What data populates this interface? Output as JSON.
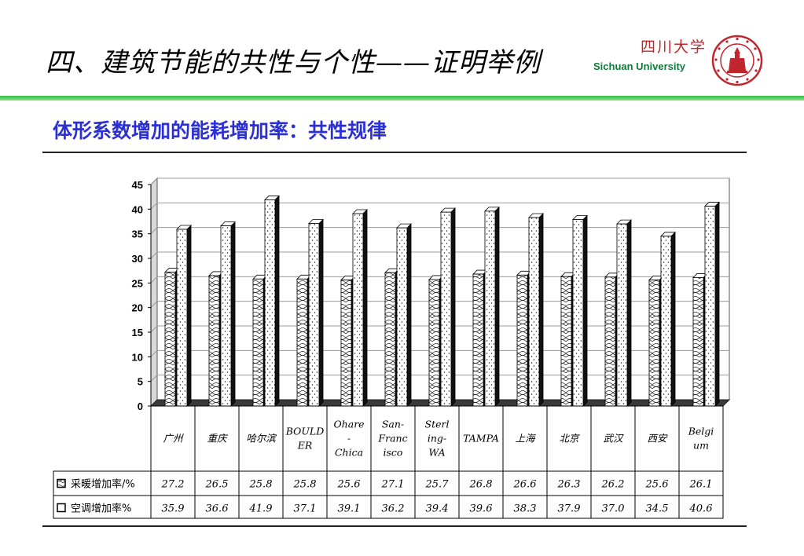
{
  "header": {
    "title": "四、建筑节能的共性与个性——证明举例",
    "logo_cn": "四川大学",
    "logo_en": "Sichuan University"
  },
  "slide": {
    "subtitle": "体形系数增加的能耗增加率：共性规律"
  },
  "colors": {
    "accent_green": "#2fc04a",
    "subtitle_blue": "#2b2fd6",
    "logo_red": "#c0262d"
  },
  "chart_data": {
    "type": "bar",
    "style": "3d clustered columns with data table",
    "grid": true,
    "ylim": [
      0,
      45
    ],
    "yticks": [
      0,
      5,
      10,
      15,
      20,
      25,
      30,
      35,
      40,
      45
    ],
    "categories": [
      "广州",
      "重庆",
      "哈尔滨",
      "BOULDER",
      "Ohare-Chica",
      "San-Francisco",
      "Sterling-WA",
      "TAMPA",
      "上海",
      "北京",
      "武汉",
      "西安",
      "Belgium"
    ],
    "category_lines": [
      [
        "广州"
      ],
      [
        "重庆"
      ],
      [
        "哈尔滨"
      ],
      [
        "BOULD",
        "ER"
      ],
      [
        "Ohare",
        "-",
        "Chica"
      ],
      [
        "San-",
        "Franc",
        "isco"
      ],
      [
        "Sterl",
        "ing-",
        "WA"
      ],
      [
        "TAMPA"
      ],
      [
        "上海"
      ],
      [
        "北京"
      ],
      [
        "武汉"
      ],
      [
        "西安"
      ],
      [
        "Belgi",
        "um"
      ]
    ],
    "series": [
      {
        "name": "采暖增加率/%",
        "pattern": "scale",
        "values": [
          27.2,
          26.5,
          25.8,
          25.8,
          25.6,
          27.1,
          25.7,
          26.8,
          26.6,
          26.3,
          26.2,
          25.6,
          26.1
        ],
        "labels": [
          "27.2",
          "26.5",
          "25.8",
          "25.8",
          "25.6",
          "27.1",
          "25.7",
          "26.8",
          "26.6",
          "26.3",
          "26.2",
          "25.6",
          "26.1"
        ]
      },
      {
        "name": "空调增加率%",
        "pattern": "dots",
        "values": [
          35.9,
          36.6,
          41.9,
          37.1,
          39.1,
          36.2,
          39.4,
          39.6,
          38.3,
          37.9,
          37.0,
          34.5,
          40.6
        ],
        "labels": [
          "35.9",
          "36.6",
          "41.9",
          "37.1",
          "39.1",
          "36.2",
          "39.4",
          "39.6",
          "38.3",
          "37.9",
          "37.0",
          "34.5",
          "40.6"
        ]
      }
    ]
  }
}
